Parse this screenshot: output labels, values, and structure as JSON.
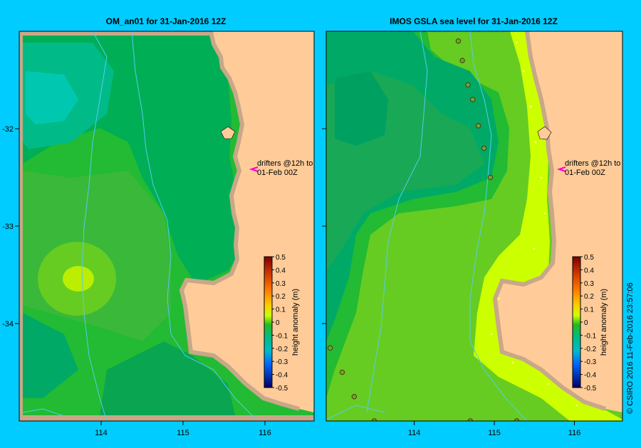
{
  "chart_data": [
    {
      "type": "heatmap",
      "title": "OM_an01  for 31-Jan-2016 12Z",
      "x_ticks": [
        114,
        115,
        116
      ],
      "y_ticks": [
        -32,
        -33,
        -34
      ],
      "xlim": [
        113.0,
        116.6
      ],
      "ylim": [
        -35.0,
        -31.0
      ],
      "annotation": {
        "line1": "drifters @12h to",
        "line2": "01-Feb 00Z",
        "lon": 115.85,
        "lat": -32.4
      },
      "colorbar": {
        "label": "height anomaly (m)",
        "ticks": [
          "0.5",
          "0.4",
          "0.3",
          "0.2",
          "0.1",
          "0",
          "-0.1",
          "-0.2",
          "-0.3",
          "-0.4",
          "-0.5"
        ],
        "range": [
          -0.5,
          0.5
        ]
      },
      "drifter_points": []
    },
    {
      "type": "heatmap",
      "title": "IMOS GSLA sea level  for 31-Jan-2016 12Z",
      "x_ticks": [
        114,
        115,
        116
      ],
      "y_ticks": [
        -32,
        -33,
        -34
      ],
      "xlim": [
        112.9,
        116.6
      ],
      "ylim": [
        -35.0,
        -31.0
      ],
      "annotation": {
        "line1": "drifters @12h to",
        "line2": "01-Feb 00Z",
        "lon": 115.85,
        "lat": -32.4
      },
      "colorbar": {
        "label": "height anomaly (m)",
        "ticks": [
          "0.5",
          "0.4",
          "0.3",
          "0.2",
          "0.1",
          "0",
          "-0.1",
          "-0.2",
          "-0.3",
          "-0.4",
          "-0.5"
        ],
        "range": [
          -0.5,
          0.5
        ]
      },
      "drifter_points": [
        {
          "lon": 114.55,
          "lat": -31.1
        },
        {
          "lon": 114.6,
          "lat": -31.3
        },
        {
          "lon": 114.67,
          "lat": -31.55
        },
        {
          "lon": 114.73,
          "lat": -31.7
        },
        {
          "lon": 114.8,
          "lat": -31.97
        },
        {
          "lon": 114.87,
          "lat": -32.2
        },
        {
          "lon": 114.95,
          "lat": -32.5
        },
        {
          "lon": 112.95,
          "lat": -34.25
        },
        {
          "lon": 113.1,
          "lat": -34.5
        },
        {
          "lon": 113.25,
          "lat": -34.75
        },
        {
          "lon": 113.5,
          "lat": -35.0
        },
        {
          "lon": 114.7,
          "lat": -35.0
        },
        {
          "lon": 115.28,
          "lat": -35.0
        }
      ]
    }
  ],
  "credit": "© CSIRO 2016  11-Feb-2016 23:57:06",
  "colors": {
    "background": "#00ccff",
    "land": "#ffcc99",
    "coast": "#c8a888",
    "isobath": "#55ccee"
  }
}
